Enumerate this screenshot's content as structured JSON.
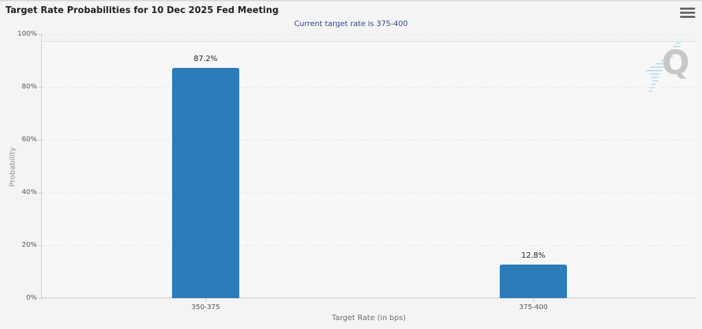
{
  "header": {
    "title": "Target Rate Probabilities for 10 Dec 2025 Fed Meeting",
    "menu_icon": "hamburger-menu-icon"
  },
  "subtitle": "Current target rate is 375-400",
  "watermark": {
    "letter": "Q",
    "name": "quikstrike-logo"
  },
  "colors": {
    "bar": "#2b7cb9",
    "subtitle_text": "#33498f",
    "gridline": "#c7c7c7",
    "watermark_gray": "#c7c7c7",
    "watermark_blue": "#8ecae6",
    "background": "#f4f4f5"
  },
  "chart_data": {
    "type": "bar",
    "title": "Target Rate Probabilities for 10 Dec 2025 Fed Meeting",
    "subtitle": "Current target rate is 375-400",
    "categories": [
      "350-375",
      "375-400"
    ],
    "values": [
      87.2,
      12.8
    ],
    "value_labels": [
      "87.2%",
      "12.8%"
    ],
    "xlabel": "Target Rate (in bps)",
    "ylabel": "Probability",
    "ylim": [
      0,
      100
    ],
    "yticks": [
      0,
      20,
      40,
      60,
      80,
      100
    ],
    "ytick_labels": [
      "0%",
      "20%",
      "40%",
      "60%",
      "80%",
      "100%"
    ],
    "grid": "dotted-horizontal",
    "legend": "none",
    "bar_color": "#2b7cb9"
  }
}
